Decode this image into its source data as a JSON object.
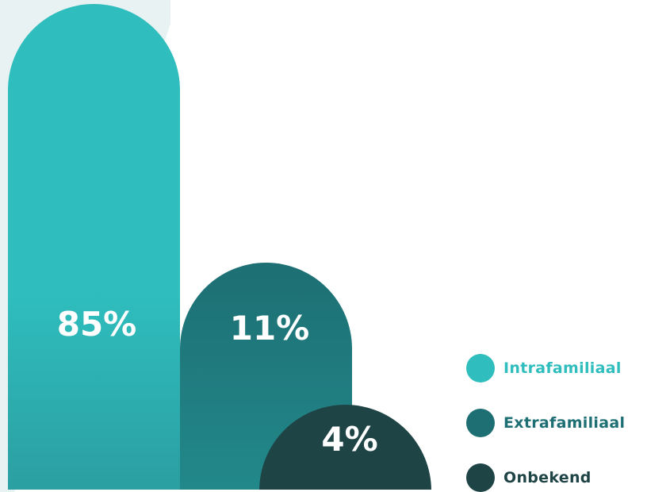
{
  "colors": {
    "intrafamiliaal": "#2fbdbd",
    "extrafamiliaal": "#1d6f73",
    "onbekend": "#1f4446",
    "panel": "#e9f2f2"
  },
  "chart_data": {
    "type": "bar",
    "categories": [
      "Intrafamiliaal",
      "Extrafamiliaal",
      "Onbekend"
    ],
    "values": [
      85,
      11,
      4
    ],
    "value_labels": [
      "85%",
      "11%",
      "4%"
    ],
    "title": "",
    "xlabel": "",
    "ylabel": "",
    "legend": "bottom-right"
  },
  "legend": {
    "items": [
      {
        "label": "Intrafamiliaal",
        "color": "#2fbdbd",
        "text_color": "#2fbdbd"
      },
      {
        "label": "Extrafamiliaal",
        "color": "#1d6f73",
        "text_color": "#1d6f73"
      },
      {
        "label": "Onbekend",
        "color": "#1f4446",
        "text_color": "#1f4446"
      }
    ]
  }
}
